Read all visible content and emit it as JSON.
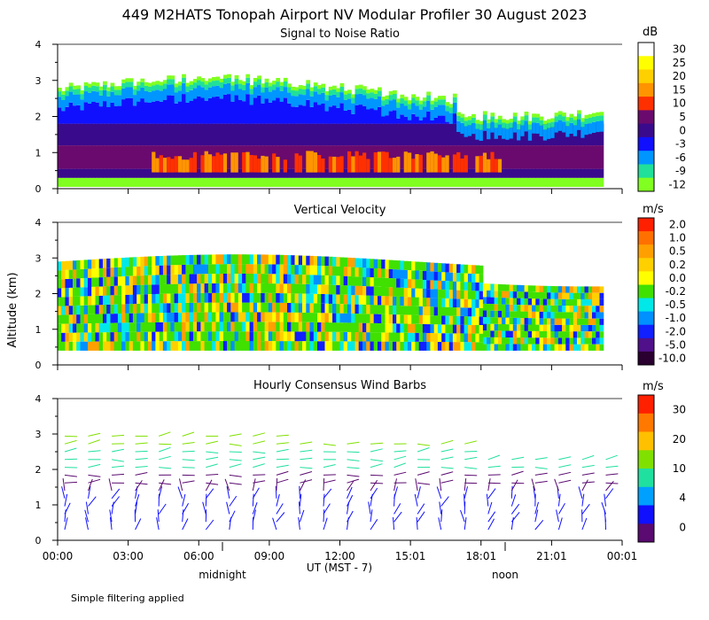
{
  "chart_data": {
    "type": "heatmap",
    "title": "449 M2HATS Tonopah Airport NV Modular Profiler 30 August 2023",
    "ylabel": "Altitude (km)",
    "xlabel": "UT  (MST - 7)",
    "x_ticks": [
      "00:00",
      "03:00",
      "06:00",
      "09:00",
      "12:00",
      "15:01",
      "18:01",
      "21:01",
      "00:01"
    ],
    "x_marks": {
      "midnight": "midnight",
      "noon": "noon"
    },
    "footnote": "Simple filtering applied",
    "panels": [
      {
        "name": "snr",
        "subtitle": "Signal to Noise Ratio",
        "units": "dB",
        "ylim": [
          0,
          4
        ],
        "yticks": [
          "0",
          "1",
          "2",
          "3",
          "4"
        ],
        "legend_labels": [
          "30",
          "25",
          "20",
          "15",
          "10",
          "5",
          "0",
          "-3",
          "-6",
          "-9",
          "-12"
        ],
        "legend_colors": [
          "#ffffff",
          "#ffff00",
          "#ffd000",
          "#ff9400",
          "#ff3000",
          "#6a0a6e",
          "#3a0a8c",
          "#1010ff",
          "#0096ff",
          "#20e09a",
          "#80ff20"
        ]
      },
      {
        "name": "vv",
        "subtitle": "Vertical Velocity",
        "units": "m/s",
        "ylim": [
          0,
          4
        ],
        "yticks": [
          "0",
          "1",
          "2",
          "3",
          "4"
        ],
        "legend_labels": [
          "2.0",
          "1.0",
          "0.5",
          "0.2",
          "0.0",
          "-0.2",
          "-0.5",
          "-1.0",
          "-2.0",
          "-5.0",
          "-10.0"
        ],
        "legend_colors": [
          "#ff2000",
          "#ff7000",
          "#ffa000",
          "#ffd000",
          "#ffff00",
          "#40e000",
          "#00e8e8",
          "#0090ff",
          "#1020ff",
          "#50108a",
          "#2a0030"
        ]
      },
      {
        "name": "wind",
        "subtitle": "Hourly Consensus Wind Barbs",
        "units": "m/s",
        "ylim": [
          0,
          4
        ],
        "yticks": [
          "0",
          "1",
          "2",
          "3",
          "4"
        ],
        "legend_labels": [
          "30",
          "20",
          "10",
          "4",
          "0"
        ],
        "legend_colors": [
          "#ff2000",
          "#ff7800",
          "#ffc000",
          "#80e000",
          "#20e0a0",
          "#00a0ff",
          "#1010ff",
          "#5a0a70"
        ]
      }
    ]
  }
}
